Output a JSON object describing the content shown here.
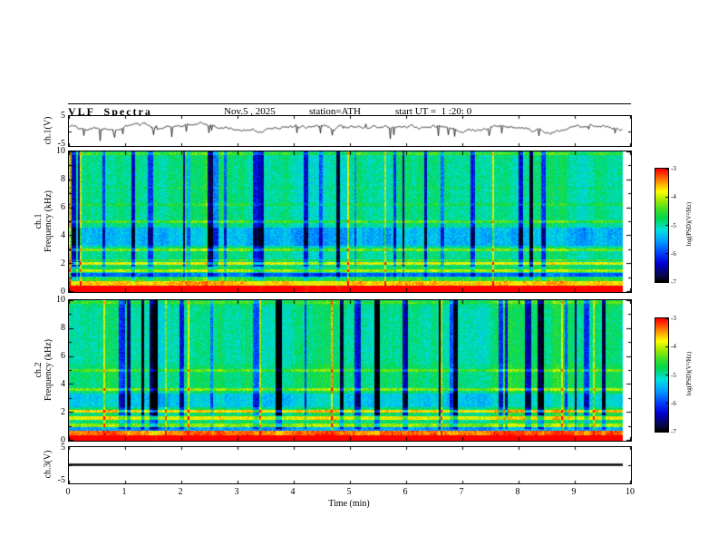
{
  "header": {
    "title": "VLF  Spectra",
    "date": "Nov.5 , 2025",
    "station": "station=ATH",
    "start_ut": "start UT =  1 :20: 0"
  },
  "xaxis": {
    "label": "Time (min)",
    "ticks": [
      "0",
      "1",
      "2",
      "3",
      "4",
      "5",
      "6",
      "7",
      "8",
      "9",
      "10"
    ]
  },
  "panels": {
    "wave1": {
      "label": "ch.1(V)",
      "ytop": "5",
      "ybottom": "-5"
    },
    "spec1": {
      "label_ch": "ch.1",
      "label_freq": "Frequency (kHz)",
      "yticks": [
        "10",
        "8",
        "6",
        "4",
        "2",
        "0"
      ]
    },
    "spec2": {
      "label_ch": "ch.2",
      "label_freq": "Frequency (kHz)",
      "yticks": [
        "10",
        "8",
        "6",
        "4",
        "2",
        "0"
      ]
    },
    "wave3": {
      "label": "ch.3(V)",
      "ytop": "5",
      "ybottom": "-5"
    }
  },
  "colorbar": {
    "ticks": [
      "-3",
      "-4",
      "-5",
      "-6",
      "-7"
    ],
    "label": "log(PSD)(V²/Hz)"
  },
  "colormap": {
    "stops": [
      [
        0.0,
        0,
        0,
        0
      ],
      [
        0.05,
        8,
        8,
        70
      ],
      [
        0.16,
        0,
        0,
        210
      ],
      [
        0.26,
        0,
        70,
        255
      ],
      [
        0.36,
        0,
        160,
        255
      ],
      [
        0.46,
        0,
        225,
        225
      ],
      [
        0.56,
        0,
        215,
        80
      ],
      [
        0.64,
        60,
        225,
        40
      ],
      [
        0.72,
        160,
        235,
        0
      ],
      [
        0.8,
        255,
        255,
        0
      ],
      [
        0.9,
        255,
        130,
        0
      ],
      [
        1.0,
        255,
        0,
        0
      ]
    ]
  },
  "chart_data": [
    {
      "type": "line",
      "name": "ch1_waveform",
      "ylabel": "ch.1(V)",
      "ylim": [
        -5,
        5
      ],
      "xlim": [
        0,
        10
      ],
      "summary": "Noisy broadband voltage trace fluctuating around +1 V with frequent sharp negative spikes approaching -5 V across the full 10 minutes.",
      "render": {
        "seed": 41,
        "mean": 1.1,
        "step": 0.9,
        "spike_prob": 0.05,
        "spike_depth": 3.2,
        "data_end_fraction": 0.985
      }
    },
    {
      "type": "heatmap",
      "name": "ch1_spectrogram",
      "ylabel": "ch.1 Frequency (kHz)",
      "ylim": [
        0,
        10
      ],
      "xlim": [
        0,
        10
      ],
      "zlim": [
        -7,
        -3
      ],
      "zlabel": "log(PSD)(V²/Hz)",
      "summary": "Mostly green background near -5 with dense vertical dark-blue dropout streaks, a strong red/orange band below ~0.7 kHz, yellow horizontal lines near 1.5, 2 and 3 kHz, and a bluish band between ~3.3 and 4.6 kHz.",
      "render": {
        "seed": 7,
        "base": -4.85,
        "noise": 0.55,
        "fmax": 10,
        "data_end_fraction": 0.985,
        "streak_prob": 0.05,
        "streak_maxw": 5,
        "streak_depth": 1.5,
        "bright_prob": 0.012,
        "bands": [
          [
            0,
            0.4,
            2.3
          ],
          [
            0.4,
            0.75,
            1.3
          ],
          [
            0.75,
            1.0,
            0.4
          ],
          [
            1.05,
            1.35,
            -0.9
          ],
          [
            1.38,
            1.62,
            0.85
          ],
          [
            1.62,
            1.85,
            0.2
          ],
          [
            1.9,
            2.12,
            1.05
          ],
          [
            2.2,
            2.32,
            0.45
          ],
          [
            2.9,
            3.1,
            0.65
          ],
          [
            3.3,
            4.6,
            -0.5
          ],
          [
            4.93,
            5.1,
            0.5
          ],
          [
            6.15,
            6.3,
            0.25
          ],
          [
            7.4,
            7.5,
            0.15
          ],
          [
            9.75,
            10,
            0.45
          ]
        ]
      }
    },
    {
      "type": "heatmap",
      "name": "ch2_spectrogram",
      "ylabel": "ch.2 Frequency (kHz)",
      "ylim": [
        0,
        10
      ],
      "xlim": [
        0,
        10
      ],
      "zlim": [
        -7,
        -3
      ],
      "zlabel": "log(PSD)(V²/Hz)",
      "summary": "Green/cyan background with many vertical dark-blue streaks, intense red band below ~0.6 kHz, yellow lines near 1.5 and 2 kHz, and a cyan-blue band between ~2.4 and 3.3 kHz.",
      "render": {
        "seed": 19,
        "base": -4.8,
        "noise": 0.55,
        "fmax": 10,
        "data_end_fraction": 0.985,
        "streak_prob": 0.06,
        "streak_maxw": 6,
        "streak_depth": 1.6,
        "bright_prob": 0.01,
        "bands": [
          [
            0,
            0.35,
            2.4
          ],
          [
            0.35,
            0.65,
            1.5
          ],
          [
            0.68,
            0.95,
            -0.7
          ],
          [
            0.95,
            1.2,
            0.65
          ],
          [
            1.45,
            1.7,
            1.0
          ],
          [
            1.95,
            2.2,
            1.15
          ],
          [
            2.35,
            3.35,
            -0.45
          ],
          [
            3.55,
            3.75,
            0.6
          ],
          [
            4.9,
            5.08,
            0.45
          ],
          [
            5.5,
            9.5,
            -0.12
          ],
          [
            9.75,
            10,
            0.35
          ]
        ]
      }
    },
    {
      "type": "line",
      "name": "ch3_waveform",
      "ylabel": "ch.3(V)",
      "ylim": [
        -5,
        5
      ],
      "xlim": [
        0,
        10
      ],
      "summary": "Flat thick line at 0 V for the whole record.",
      "render": {
        "value": 0,
        "lineWidth": 2.4,
        "data_end_fraction": 0.985
      }
    }
  ]
}
